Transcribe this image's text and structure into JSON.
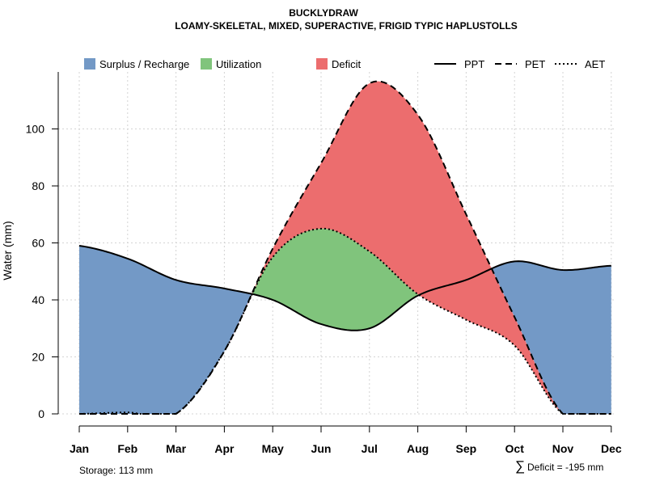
{
  "chart_data": {
    "type": "area",
    "title": "BUCKLYDRAW",
    "subtitle": "LOAMY-SKELETAL, MIXED, SUPERACTIVE, FRIGID TYPIC HAPLUSTOLLS",
    "xlabel": "",
    "ylabel": "Water (mm)",
    "categories": [
      "Jan",
      "Feb",
      "Mar",
      "Apr",
      "May",
      "Jun",
      "Jul",
      "Aug",
      "Sep",
      "Oct",
      "Nov",
      "Dec"
    ],
    "ylim": [
      0,
      120
    ],
    "yticks": [
      0,
      20,
      40,
      60,
      80,
      100
    ],
    "grid": true,
    "series": [
      {
        "name": "PPT",
        "style": "solid",
        "values": [
          59,
          54.5,
          47,
          44,
          40,
          31.5,
          30,
          41.5,
          47,
          53.5,
          50.5,
          52
        ]
      },
      {
        "name": "PET",
        "style": "dashed",
        "values": [
          0,
          0,
          0,
          22,
          58,
          88,
          116,
          105,
          70,
          34,
          0,
          0
        ]
      },
      {
        "name": "AET",
        "style": "dotted",
        "values": [
          0,
          0.5,
          0,
          22,
          55,
          65,
          57,
          42,
          33,
          24,
          0,
          0
        ]
      }
    ],
    "legend": {
      "position": "top",
      "fills": [
        {
          "label": "Surplus / Recharge",
          "color": "#7399c6"
        },
        {
          "label": "Utilization",
          "color": "#80c47c"
        },
        {
          "label": "Deficit",
          "color": "#ec6d6e"
        }
      ],
      "lines": [
        {
          "label": "PPT",
          "style": "solid"
        },
        {
          "label": "PET",
          "style": "dashed"
        },
        {
          "label": "AET",
          "style": "dotted"
        }
      ]
    },
    "annotations": {
      "storage": "Storage: 113 mm",
      "deficit_symbol": "∑",
      "deficit": "Deficit = -195 mm"
    }
  },
  "colors": {
    "surplus": "#7399c6",
    "utilization": "#80c47c",
    "deficit": "#ec6d6e",
    "grid": "#d3d3d3",
    "line": "#000000"
  }
}
